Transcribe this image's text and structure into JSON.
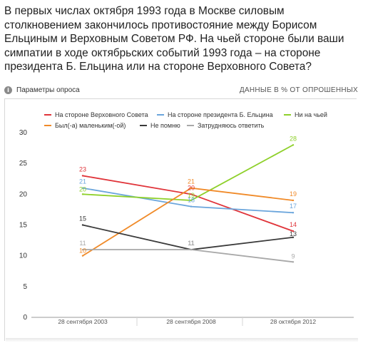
{
  "header": {
    "question": "В первых числах октября 1993 года в Москве силовым столкновением закончилось противостояние между Борисом Ельциным и Верховным Советом РФ. На чьей стороне были ваши симпатии в ходе октябрьских событий 1993 года – на стороне президента Б. Ельцина или на стороне Верховного Совета?",
    "params_label": "Параметры опроса",
    "units_label": "ДАННЫЕ В % ОТ ОПРОШЕННЫХ",
    "info_icon": "info-icon"
  },
  "chart_data": {
    "type": "line",
    "categories": [
      "28 сентября 2003",
      "28 сентября 2008",
      "28 октября 2012"
    ],
    "ylim": [
      0,
      30
    ],
    "yticks": [
      0,
      5,
      10,
      15,
      20,
      25,
      30
    ],
    "grid": false,
    "legend_position": "top",
    "series": [
      {
        "name": "На стороне Верховного Совета",
        "color": "#e0343a",
        "values": [
          23,
          20,
          14
        ],
        "labels": [
          "23",
          "20",
          "14"
        ]
      },
      {
        "name": "На стороне президента Б. Ельцина",
        "color": "#6aa5dc",
        "values": [
          21,
          18,
          17
        ],
        "labels": [
          "21",
          "18",
          "17"
        ]
      },
      {
        "name": "Ни на чьей",
        "color": "#8ed02a",
        "values": [
          20,
          19,
          28
        ],
        "labels": [
          "20",
          "19",
          "28"
        ]
      },
      {
        "name": "Был(-а) маленьким(-ой)",
        "color": "#f08a28",
        "values": [
          10,
          21,
          19
        ],
        "labels": [
          "10",
          "21",
          "19"
        ]
      },
      {
        "name": "Не помню",
        "color": "#3a3a3a",
        "values": [
          15,
          11,
          13
        ],
        "labels": [
          "15",
          "11",
          "13"
        ]
      },
      {
        "name": "Затрудняюсь ответить",
        "color": "#a8a8a8",
        "values": [
          11,
          11,
          9
        ],
        "labels": [
          "11",
          "11",
          "9"
        ]
      }
    ]
  }
}
